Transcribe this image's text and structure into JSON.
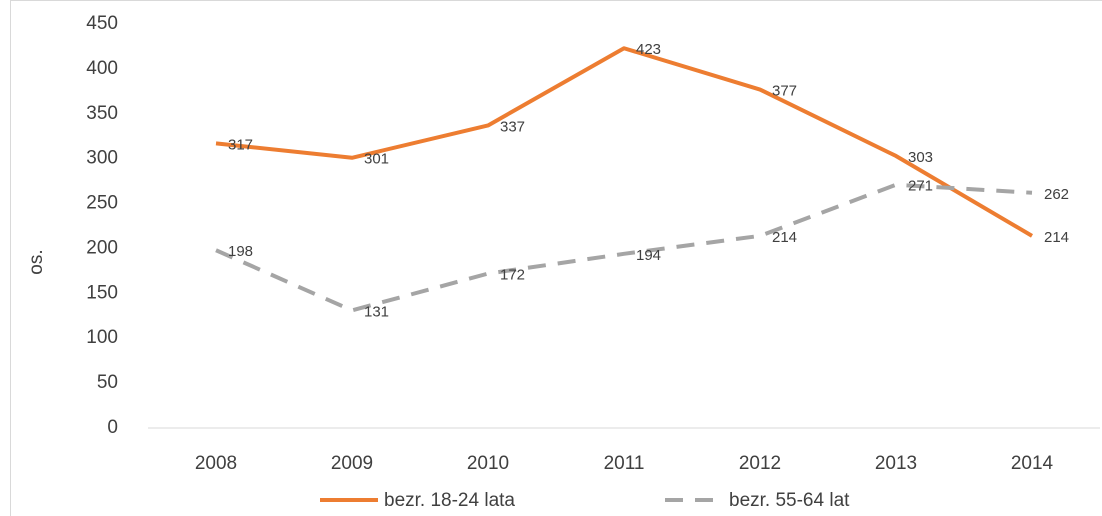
{
  "chart_data": {
    "type": "line",
    "y_label": "os.",
    "categories": [
      "2008",
      "2009",
      "2010",
      "2011",
      "2012",
      "2013",
      "2014"
    ],
    "series": [
      {
        "name": "bezr. 18-24 lata",
        "color": "#ed7d31",
        "dash": false,
        "values": [
          317,
          301,
          337,
          423,
          377,
          303,
          214
        ]
      },
      {
        "name": "bezr. 55-64 lat",
        "color": "#a5a5a5",
        "dash": true,
        "values": [
          198,
          131,
          172,
          194,
          214,
          271,
          262
        ]
      }
    ],
    "ylim": [
      0,
      450
    ],
    "yticks": [
      0,
      50,
      100,
      150,
      200,
      250,
      300,
      350,
      400,
      450
    ],
    "grid": false
  }
}
